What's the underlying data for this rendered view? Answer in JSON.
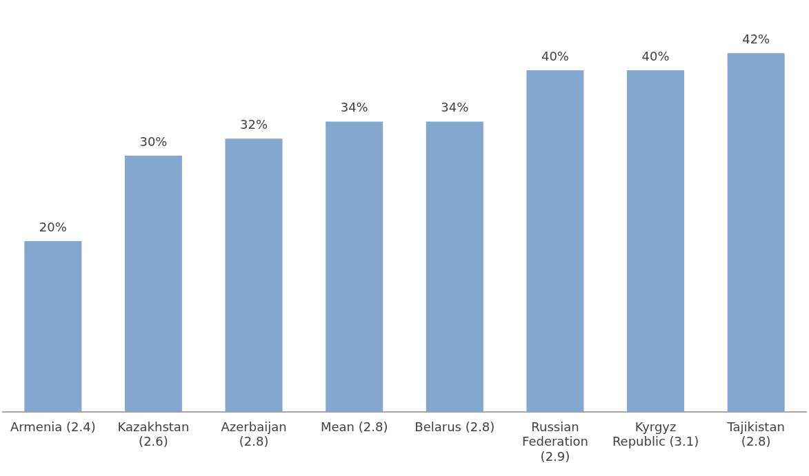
{
  "chart_data": {
    "type": "bar",
    "categories": [
      "Armenia (2.4)",
      "Kazakhstan (2.6)",
      "Azerbaijan (2.8)",
      "Mean (2.8)",
      "Belarus (2.8)",
      "Russian Federation (2.9)",
      "Kyrgyz Republic (3.1)",
      "Tajikistan (2.8)"
    ],
    "values": [
      20,
      30,
      32,
      34,
      34,
      40,
      40,
      42
    ],
    "value_labels": [
      "20%",
      "30%",
      "32%",
      "34%",
      "34%",
      "40%",
      "40%",
      "42%"
    ],
    "color": "#84a7cf",
    "tick_labels": "x",
    "grid": false,
    "legend": false
  }
}
